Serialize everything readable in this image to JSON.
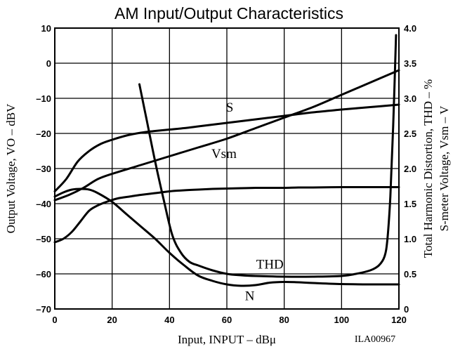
{
  "chart_data": {
    "type": "line",
    "title": "AM Input/Output Characteristics",
    "xlabel": "Input, INPUT – dBμ",
    "ylabel_left": "Output Voltage, VO – dBV",
    "ylabel_right_1": "Total Harmonic Distortion, THD – %",
    "ylabel_right_2": "S-meter Voltage, Vsm – V",
    "xlim": [
      0,
      120
    ],
    "ylim_left": [
      -70,
      10
    ],
    "ylim_right": [
      0,
      4.0
    ],
    "grid": true,
    "x_ticks": [
      "0",
      "20",
      "40",
      "60",
      "80",
      "100",
      "120"
    ],
    "y_ticks_left": [
      "10",
      "0",
      "–10",
      "–20",
      "–30",
      "–40",
      "–50",
      "–60",
      "–70"
    ],
    "y_ticks_right": [
      "4.0",
      "3.5",
      "3.0",
      "2.5",
      "2.0",
      "1.5",
      "1.0",
      "0.5",
      "0"
    ],
    "code": "ILA00967",
    "series": [
      {
        "name": "S",
        "axis": "left",
        "x": [
          0,
          4,
          8,
          12,
          16,
          20,
          25,
          30,
          35,
          40,
          45,
          50,
          60,
          70,
          80,
          90,
          100,
          110,
          120
        ],
        "y": [
          -36.5,
          -33,
          -28,
          -25,
          -23,
          -21.8,
          -20.6,
          -19.8,
          -19.3,
          -18.9,
          -18.5,
          -18,
          -17,
          -16,
          -15,
          -14,
          -13.2,
          -12.5,
          -11.8
        ]
      },
      {
        "name": "Vsm",
        "axis": "left",
        "x": [
          0,
          5,
          10,
          15,
          20,
          30,
          40,
          50,
          60,
          70,
          80,
          90,
          100,
          110,
          120
        ],
        "y": [
          -39,
          -37.5,
          -35.5,
          -33,
          -31.5,
          -29,
          -26.5,
          -24,
          -21.5,
          -18.5,
          -15.5,
          -12.5,
          -9,
          -5.5,
          -2
        ]
      },
      {
        "name": "N",
        "axis": "left",
        "x": [
          0,
          3,
          6,
          9,
          12,
          15,
          18,
          22,
          26,
          30,
          35,
          40,
          45,
          50,
          55,
          60,
          65,
          70,
          75,
          80,
          85,
          90,
          100,
          110,
          120
        ],
        "y": [
          -51,
          -50,
          -48,
          -45,
          -42,
          -40.5,
          -39.5,
          -38.5,
          -38,
          -37.5,
          -37,
          -36.5,
          -36.2,
          -36,
          -35.8,
          -35.7,
          -35.6,
          -35.5,
          -35.5,
          -35.5,
          -35.4,
          -35.4,
          -35.3,
          -35.3,
          -35.3
        ]
      },
      {
        "name": "THD",
        "axis": "right",
        "x": [
          29.5,
          32,
          35,
          38,
          41,
          44,
          47,
          50,
          55,
          60,
          65,
          70,
          80,
          90,
          100,
          105,
          110,
          113,
          115,
          116,
          117,
          118,
          119
        ],
        "y": [
          3.2,
          2.7,
          2.1,
          1.55,
          1.05,
          0.8,
          0.67,
          0.62,
          0.55,
          0.5,
          0.48,
          0.47,
          0.46,
          0.46,
          0.47,
          0.5,
          0.55,
          0.62,
          0.75,
          1.0,
          1.6,
          2.6,
          3.9
        ]
      },
      {
        "name": "",
        "axis": "left",
        "x": [
          0,
          3,
          6,
          9,
          12,
          15,
          20,
          25,
          30,
          35,
          40,
          45,
          50,
          55,
          60,
          65,
          70,
          75,
          80,
          85,
          90,
          100,
          110,
          120
        ],
        "y": [
          -38,
          -36.8,
          -36,
          -35.8,
          -36,
          -37,
          -39.5,
          -43,
          -46.5,
          -50,
          -54,
          -57.5,
          -60.5,
          -62,
          -63,
          -63.4,
          -63.2,
          -62.5,
          -62.3,
          -62.4,
          -62.6,
          -62.9,
          -63,
          -63
        ]
      }
    ],
    "annotations": [
      {
        "text": "S",
        "series": "S",
        "x": 61,
        "y": -13.8
      },
      {
        "text": "Vsm",
        "series": "Vsm",
        "x": 59,
        "y": -27
      },
      {
        "text": "THD",
        "series": "THD",
        "x": 75,
        "y": -58.5
      },
      {
        "text": "N",
        "series": "N",
        "x": 68,
        "y": -67.5
      }
    ]
  }
}
